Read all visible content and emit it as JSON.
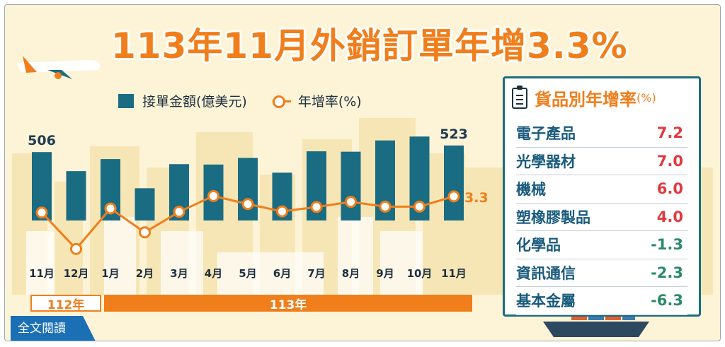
{
  "title": "113年11月外銷訂單年增3.3%",
  "legend": {
    "bar_label": "接單金額(億美元)",
    "line_label": "年增率(%)"
  },
  "chart_data": {
    "type": "bar",
    "categories": [
      "11月",
      "12月",
      "1月",
      "2月",
      "3月",
      "4月",
      "5月",
      "6月",
      "7月",
      "8月",
      "9月",
      "10月",
      "11月"
    ],
    "series": [
      {
        "name": "接單金額(億美元)",
        "type": "bar",
        "values": [
          506,
          457,
          488,
          413,
          475,
          474,
          491,
          453,
          508,
          507,
          536,
          546,
          523
        ],
        "labels": [
          "506",
          "",
          "",
          "",
          "",
          "",
          "",
          "",
          "",
          "",
          "",
          "",
          "523"
        ]
      },
      {
        "name": "年增率(%)",
        "type": "line",
        "values": [
          -1.1,
          -11.0,
          0.0,
          -6.5,
          -0.9,
          3.4,
          1.2,
          -0.8,
          0.4,
          1.8,
          0.5,
          0.5,
          3.3
        ],
        "labels": [
          "",
          "",
          "",
          "",
          "",
          "",
          "",
          "",
          "",
          "",
          "",
          "",
          "3.3"
        ]
      }
    ],
    "colors": {
      "bar": "#1a6c82",
      "line": "#f07e1b"
    },
    "years": [
      {
        "label": "112年"
      },
      {
        "label": "113年"
      }
    ]
  },
  "panel": {
    "title": "貨品別年增率",
    "unit": "(%)",
    "rows": [
      {
        "name": "電子產品",
        "value": "7.2"
      },
      {
        "name": "光學器材",
        "value": "7.0"
      },
      {
        "name": "機械",
        "value": "6.0"
      },
      {
        "name": "塑橡膠製品",
        "value": "4.0"
      },
      {
        "name": "化學品",
        "value": "-1.3"
      },
      {
        "name": "資訊通信",
        "value": "-2.3"
      },
      {
        "name": "基本金屬",
        "value": "-6.3"
      }
    ]
  },
  "read_more": "全文閱讀"
}
